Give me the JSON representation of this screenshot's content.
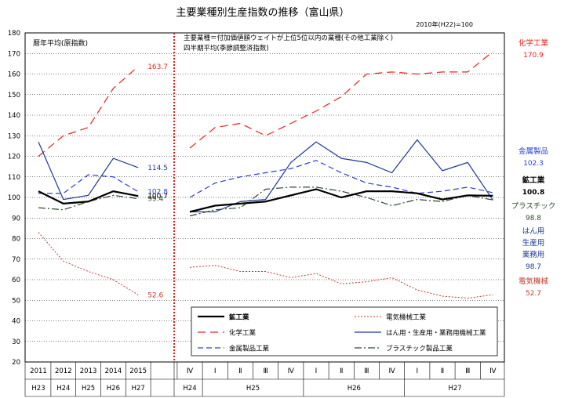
{
  "title": "主要業種別生産指数の推移（富山県）",
  "base_note": "2010年(H22)=100",
  "left_panel_label": "暦年平均(原指数)",
  "right_panel_note1": "主要業種＝付加価値額ウェイトが上位5位以内の業種(その他工業除く)",
  "right_panel_note2": "四半期平均(季節調整済指数)",
  "colors": {
    "mining": "#000000",
    "electrical": "#c0392b",
    "chemical": "#e8231e",
    "general": "#1f3a93",
    "metal": "#2a3fd4",
    "plastic": "#2d4a2d",
    "divider": "#e01b1b"
  },
  "chart_data": {
    "type": "line",
    "ylim": [
      20,
      180
    ],
    "yticks": [
      20,
      30,
      40,
      50,
      60,
      70,
      80,
      90,
      100,
      110,
      120,
      130,
      140,
      150,
      160,
      170,
      180
    ],
    "grid": true,
    "annual_categories": [
      "2011",
      "2012",
      "2013",
      "2014",
      "2015"
    ],
    "annual_era": [
      "H23",
      "H24",
      "H25",
      "H26",
      "H27"
    ],
    "quarter_categories": [
      "Ⅳ",
      "Ⅰ",
      "Ⅱ",
      "Ⅲ",
      "Ⅳ",
      "Ⅰ",
      "Ⅱ",
      "Ⅲ",
      "Ⅳ",
      "Ⅰ",
      "Ⅱ",
      "Ⅲ",
      "Ⅳ"
    ],
    "quarter_years": [
      {
        "label": "H24",
        "span": [
          0,
          0
        ]
      },
      {
        "label": "H25",
        "span": [
          1,
          4
        ]
      },
      {
        "label": "H26",
        "span": [
          5,
          8
        ]
      },
      {
        "label": "H27",
        "span": [
          9,
          12
        ]
      }
    ],
    "series": [
      {
        "key": "chemical",
        "name": "化学工業",
        "dash": "10,6",
        "width": 1.2,
        "annual": [
          120,
          130,
          134,
          153,
          163.7
        ],
        "quarterly": [
          124,
          134,
          136,
          130,
          136,
          142,
          149,
          160,
          161,
          160,
          161,
          161,
          170.9
        ]
      },
      {
        "key": "general",
        "name": "はん用・生産用・業務用機械工業",
        "dash": "",
        "width": 1.2,
        "annual": [
          127,
          99,
          101,
          119,
          114.5
        ],
        "quarterly": [
          93,
          93,
          98,
          99,
          117,
          127,
          119,
          117,
          112,
          128,
          113,
          117,
          98.7
        ]
      },
      {
        "key": "metal",
        "name": "金属製品工業",
        "dash": "7,4",
        "width": 1.2,
        "annual": [
          102,
          102,
          111,
          110,
          102.8
        ],
        "quarterly": [
          100,
          107,
          110,
          112,
          114,
          118,
          112,
          107,
          105,
          102,
          103,
          105,
          102.3
        ]
      },
      {
        "key": "plastic",
        "name": "プラスチック製品工業",
        "dash": "9,3,2,3",
        "width": 1.2,
        "annual": [
          95,
          94,
          98,
          101,
          99.4
        ],
        "quarterly": [
          91,
          94,
          95,
          104,
          105,
          105,
          103,
          100,
          96,
          99,
          98,
          101,
          98.8
        ]
      },
      {
        "key": "mining",
        "name": "鉱工業",
        "dash": "",
        "width": 2.2,
        "annual": [
          103,
          97,
          98,
          103,
          100.7
        ],
        "quarterly": [
          93,
          96,
          97,
          98,
          101,
          104,
          100,
          103,
          103,
          102,
          99,
          101,
          100.8
        ]
      },
      {
        "key": "electrical",
        "name": "電気機械工業",
        "dash": "2,2",
        "width": 1,
        "annual": [
          83,
          69,
          64,
          60,
          52.6
        ],
        "quarterly": [
          66,
          67,
          64,
          64,
          61,
          63,
          58,
          59,
          61,
          55,
          52,
          51,
          52.7
        ]
      }
    ],
    "annual_end_labels": [
      {
        "key": "chemical",
        "text": "163.7"
      },
      {
        "key": "general",
        "text": "114.5"
      },
      {
        "key": "metal",
        "text": "102.8"
      },
      {
        "key": "mining",
        "text": "100.7"
      },
      {
        "key": "plastic",
        "text": "99.4"
      },
      {
        "key": "electrical",
        "text": "52.6"
      }
    ],
    "right_labels": [
      {
        "key": "chemical",
        "lines": [
          "化学工業",
          "170.9"
        ]
      },
      {
        "key": "metal",
        "lines": [
          "金属製品",
          "102.3"
        ]
      },
      {
        "key": "mining",
        "lines": [
          "鉱工業",
          "100.8"
        ]
      },
      {
        "key": "plastic",
        "lines": [
          "プラスチック",
          "98.8"
        ]
      },
      {
        "key": "general",
        "lines": [
          "はん用",
          "生産用",
          "業務用",
          "98.7"
        ]
      },
      {
        "key": "electrical",
        "lines": [
          "電気機械",
          "52.7"
        ]
      }
    ],
    "legend": [
      {
        "key": "mining",
        "label": "鉱工業"
      },
      {
        "key": "electrical",
        "label": "電気機械工業"
      },
      {
        "key": "chemical",
        "label": "化学工業"
      },
      {
        "key": "general",
        "label": "はん用・生産用・業務用機械工業"
      },
      {
        "key": "metal",
        "label": "金属製品工業"
      },
      {
        "key": "plastic",
        "label": "プラスチック製品工業"
      }
    ]
  }
}
